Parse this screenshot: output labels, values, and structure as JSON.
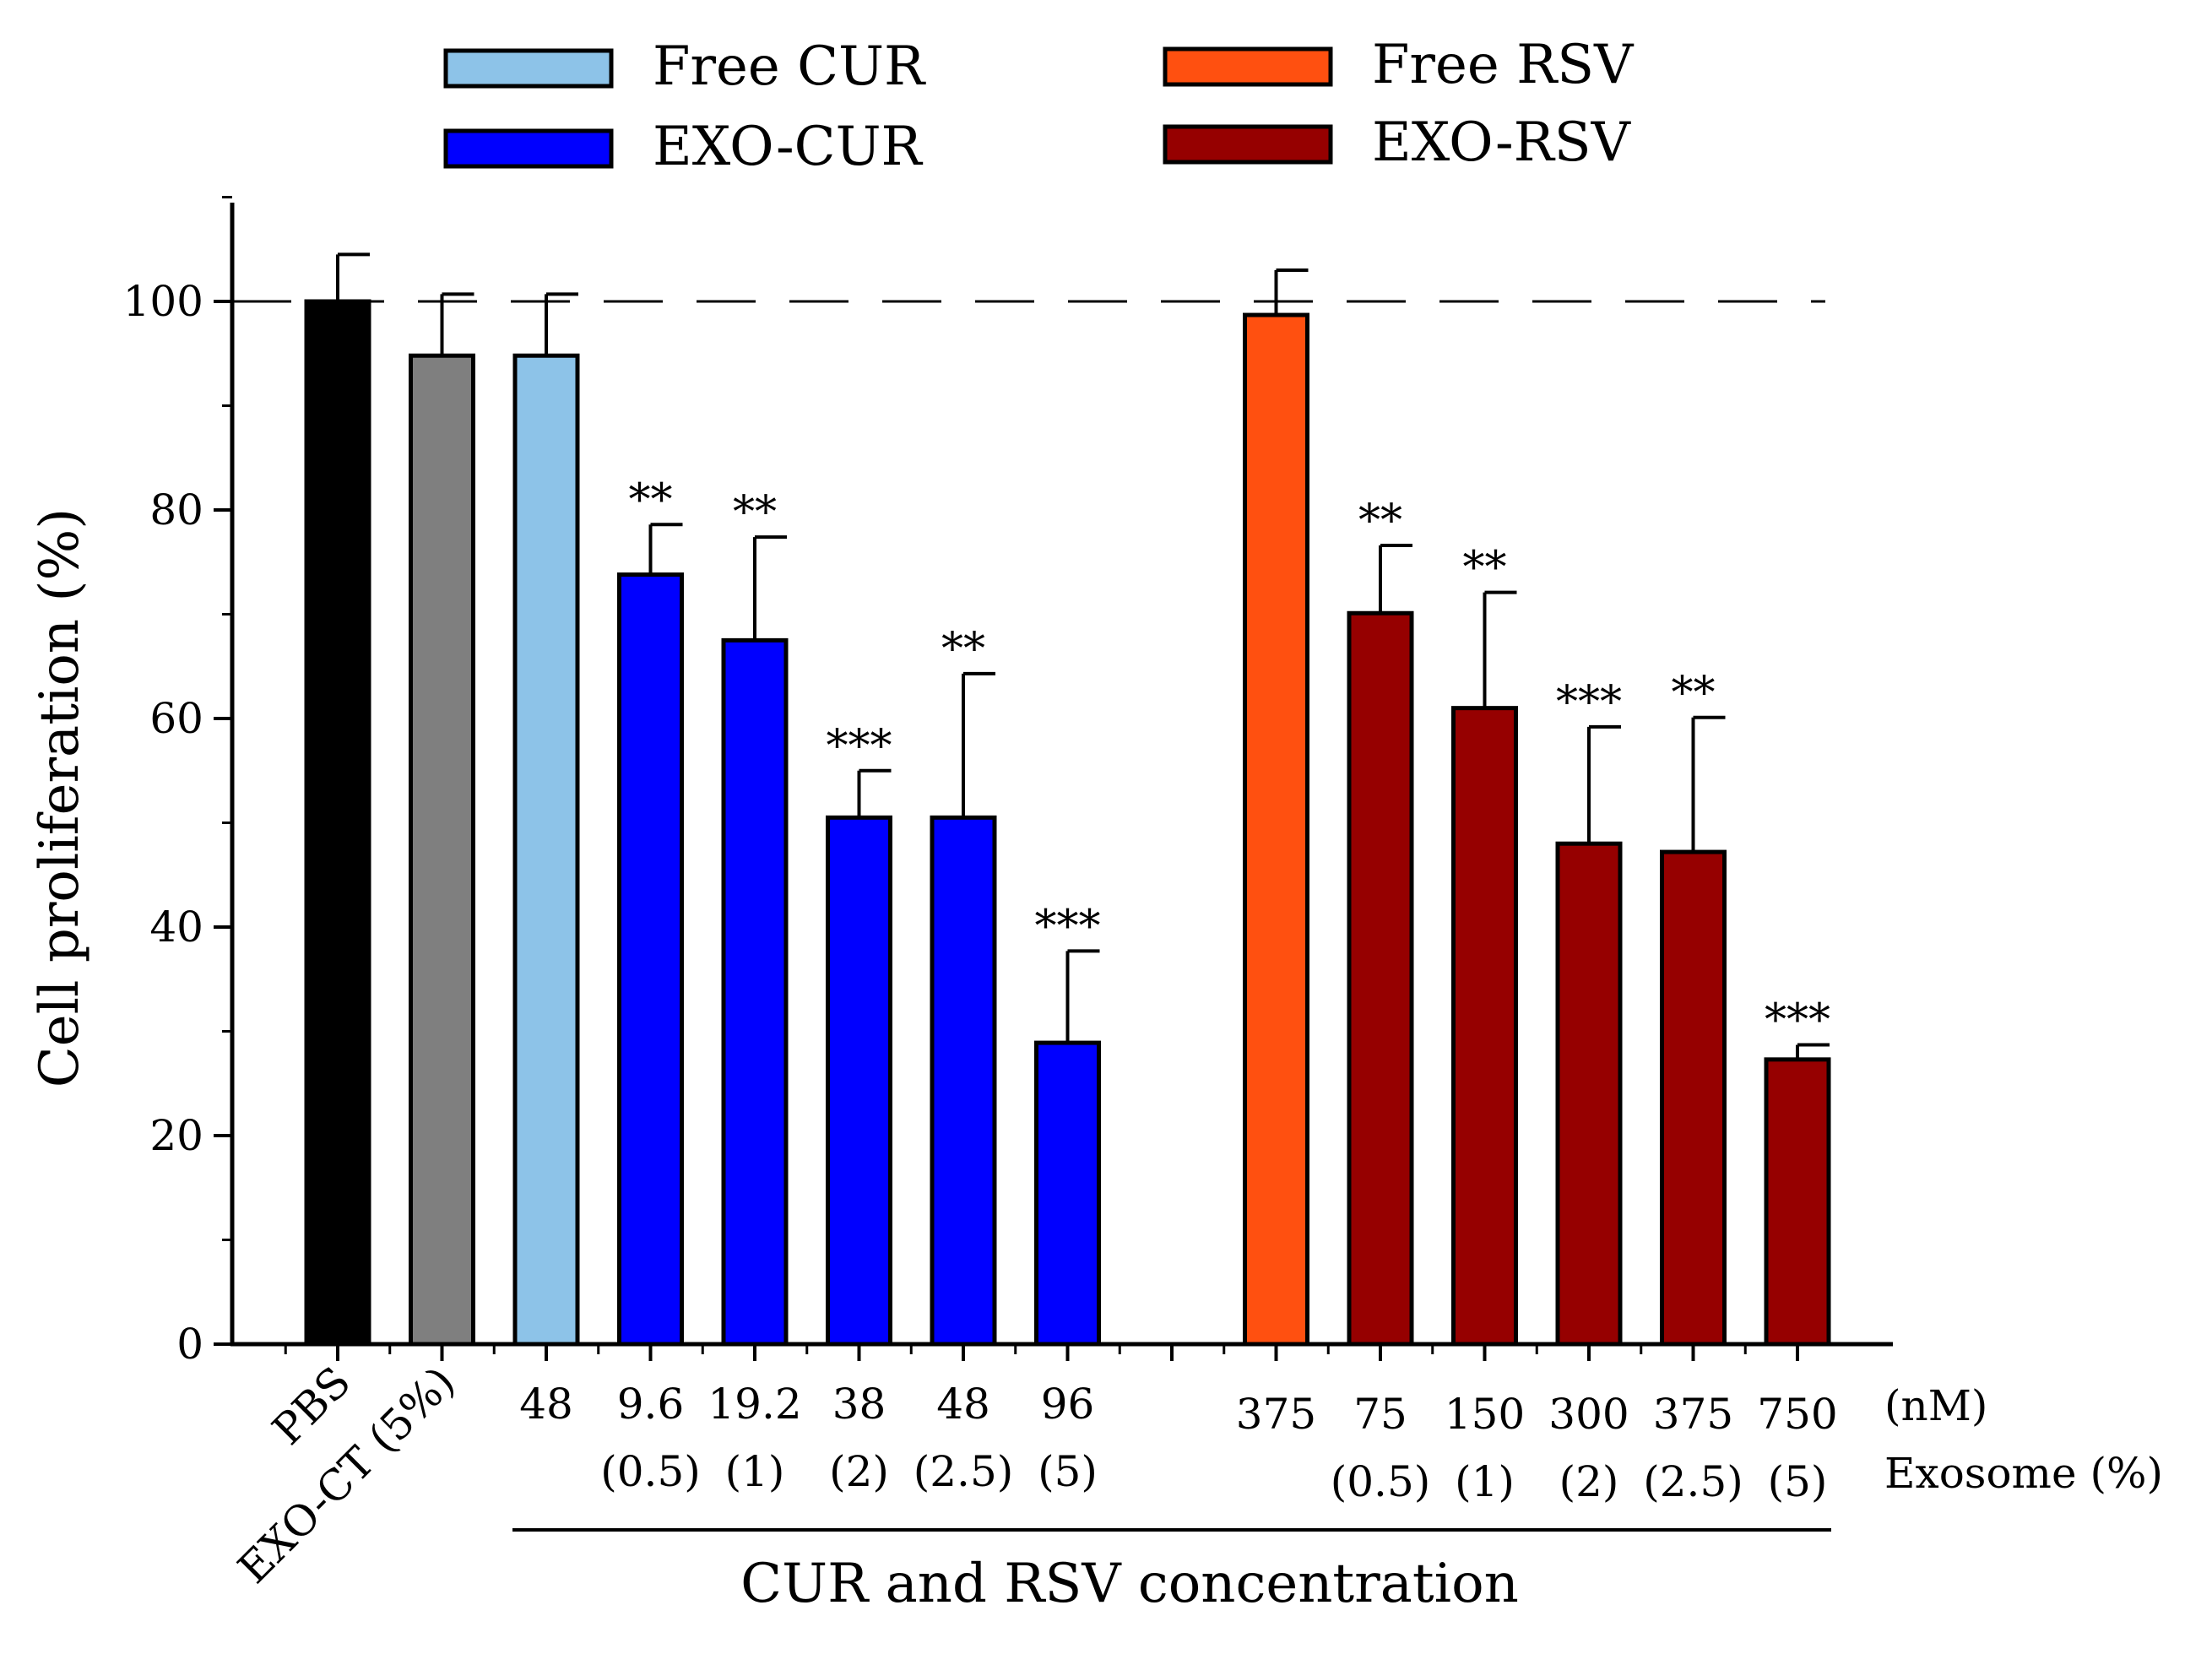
{
  "chart_data": {
    "type": "bar",
    "ylabel": "Cell proliferation (%)",
    "xlabel": "CUR and RSV concentration",
    "ylim": [
      0,
      110
    ],
    "yticks": [
      0,
      20,
      40,
      60,
      80,
      100
    ],
    "reference_line": 100,
    "legend": [
      {
        "label": "Free CUR",
        "color": "#8dc3e8"
      },
      {
        "label": "EXO-CUR",
        "color": "#0000ff"
      },
      {
        "label": "Free RSV",
        "color": "#ff5010"
      },
      {
        "label": "EXO-RSV",
        "color": "#960000"
      }
    ],
    "row_labels": {
      "concentration": "(nM)",
      "exosome": "Exosome (%)"
    },
    "bars": [
      {
        "label": "PBS",
        "value": 100,
        "error": 4.5,
        "color": "#000000",
        "sig": "",
        "slot": 0
      },
      {
        "label": "EXO-CT (5%)",
        "value": 94.8,
        "error": 5.9,
        "color": "#7f7f7f",
        "sig": "",
        "slot": 1
      },
      {
        "label": "48",
        "sub": "",
        "value": 94.8,
        "error": 5.9,
        "color": "#8dc3e8",
        "sig": "",
        "slot": 2
      },
      {
        "label": "9.6",
        "sub": "(0.5)",
        "value": 73.8,
        "error": 4.8,
        "color": "#0000ff",
        "sig": "**",
        "slot": 3
      },
      {
        "label": "19.2",
        "sub": "(1)",
        "value": 67.5,
        "error": 9.9,
        "color": "#0000ff",
        "sig": "**",
        "slot": 4
      },
      {
        "label": "38",
        "sub": "(2)",
        "value": 50.5,
        "error": 4.5,
        "color": "#0000ff",
        "sig": "***",
        "slot": 5
      },
      {
        "label": "48",
        "sub": "(2.5)",
        "value": 50.5,
        "error": 13.8,
        "color": "#0000ff",
        "sig": "**",
        "slot": 6
      },
      {
        "label": "96",
        "sub": "(5)",
        "value": 28.9,
        "error": 8.8,
        "color": "#0000ff",
        "sig": "***",
        "slot": 7
      },
      {
        "label": "375",
        "sub": "",
        "value": 98.7,
        "error": 4.3,
        "color": "#ff5010",
        "sig": "",
        "slot": 9
      },
      {
        "label": "75",
        "sub": "(0.5)",
        "value": 70.1,
        "error": 6.5,
        "color": "#960000",
        "sig": "**",
        "slot": 10
      },
      {
        "label": "150",
        "sub": "(1)",
        "value": 61.0,
        "error": 11.1,
        "color": "#960000",
        "sig": "**",
        "slot": 11
      },
      {
        "label": "300",
        "sub": "(2)",
        "value": 48.0,
        "error": 11.2,
        "color": "#960000",
        "sig": "***",
        "slot": 12
      },
      {
        "label": "375",
        "sub": "(2.5)",
        "value": 47.2,
        "error": 12.9,
        "color": "#960000",
        "sig": "**",
        "slot": 13
      },
      {
        "label": "750",
        "sub": "(5)",
        "value": 27.3,
        "error": 1.4,
        "color": "#960000",
        "sig": "***",
        "slot": 14
      }
    ]
  }
}
